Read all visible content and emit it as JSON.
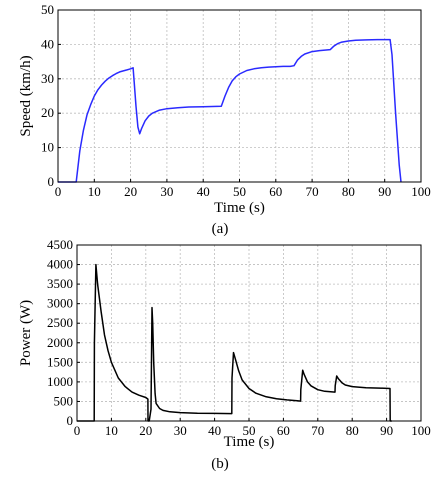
{
  "chart_data": [
    {
      "type": "line",
      "panel_label": "(a)",
      "xlabel": "Time (s)",
      "ylabel": "Speed (km/h)",
      "xlim": [
        0,
        100
      ],
      "ylim": [
        0,
        50
      ],
      "xticks": [
        "0",
        "10",
        "20",
        "30",
        "40",
        "50",
        "60",
        "70",
        "80",
        "90",
        "100"
      ],
      "yticks": [
        "0",
        "10",
        "20",
        "30",
        "40",
        "50"
      ],
      "grid": true,
      "line_color": "#2a2aff",
      "series": [
        {
          "x": [
            0,
            5,
            6,
            7,
            8,
            9,
            10,
            11,
            12,
            13,
            14,
            15,
            16,
            17,
            18,
            19,
            20,
            20.7,
            21,
            21.5,
            22,
            22.5,
            23,
            24,
            25,
            26,
            28,
            30,
            33,
            36,
            40,
            45,
            46,
            47,
            48,
            49,
            50,
            52,
            54,
            56,
            58,
            60,
            62,
            64,
            65,
            66,
            67,
            68,
            70,
            72,
            75,
            76,
            77,
            78,
            80,
            82,
            85,
            88,
            90,
            91.5,
            92,
            93,
            94,
            94.5
          ],
          "y": [
            0,
            0,
            9,
            15,
            19.5,
            22.5,
            25,
            26.8,
            28.2,
            29.3,
            30.2,
            30.9,
            31.5,
            32,
            32.3,
            32.6,
            32.9,
            33.2,
            29,
            22,
            16,
            14,
            15.5,
            17.8,
            19.2,
            20,
            20.9,
            21.3,
            21.6,
            21.8,
            21.9,
            22,
            25,
            27.5,
            29.4,
            30.6,
            31.4,
            32.4,
            32.9,
            33.2,
            33.4,
            33.5,
            33.6,
            33.6,
            33.8,
            35.5,
            36.5,
            37.2,
            37.9,
            38.2,
            38.5,
            39.5,
            40.2,
            40.6,
            41,
            41.2,
            41.3,
            41.4,
            41.4,
            41.4,
            37,
            20,
            5,
            0
          ]
        }
      ]
    },
    {
      "type": "line",
      "panel_label": "(b)",
      "xlabel": "Time (s)",
      "ylabel": "Power (W)",
      "xlim": [
        0,
        100
      ],
      "ylim": [
        0,
        4500
      ],
      "xticks": [
        "0",
        "10",
        "20",
        "30",
        "40",
        "50",
        "60",
        "70",
        "80",
        "90",
        "100"
      ],
      "yticks": [
        "0",
        "500",
        "1000",
        "1500",
        "2000",
        "2500",
        "3000",
        "3500",
        "4000",
        "4500"
      ],
      "grid": true,
      "line_color": "#000000",
      "series": [
        {
          "x": [
            0,
            5,
            5.05,
            5.5,
            6,
            7,
            8,
            9,
            10,
            12,
            14,
            16,
            18,
            20,
            20.6,
            20.65,
            21,
            21.5,
            21.8,
            22,
            22.3,
            22.7,
            23,
            24,
            25,
            27,
            30,
            35,
            40,
            45,
            45.05,
            45.5,
            46,
            47,
            48,
            50,
            52,
            55,
            58,
            61,
            64,
            65,
            65.05,
            65.6,
            66,
            67,
            68,
            70,
            72,
            75,
            75.05,
            75.5,
            76,
            77,
            78,
            80,
            84,
            88,
            91,
            91.05,
            91.5
          ],
          "y": [
            0,
            0,
            2000,
            4000,
            3500,
            2800,
            2200,
            1800,
            1500,
            1100,
            880,
            740,
            660,
            600,
            560,
            0,
            0,
            300,
            2900,
            2500,
            1500,
            700,
            450,
            320,
            270,
            235,
            215,
            200,
            195,
            190,
            1100,
            1750,
            1600,
            1280,
            1050,
            830,
            710,
            620,
            570,
            540,
            520,
            510,
            800,
            1300,
            1200,
            1000,
            900,
            800,
            760,
            740,
            900,
            1150,
            1080,
            980,
            920,
            880,
            850,
            840,
            830,
            0,
            0
          ]
        }
      ]
    }
  ]
}
